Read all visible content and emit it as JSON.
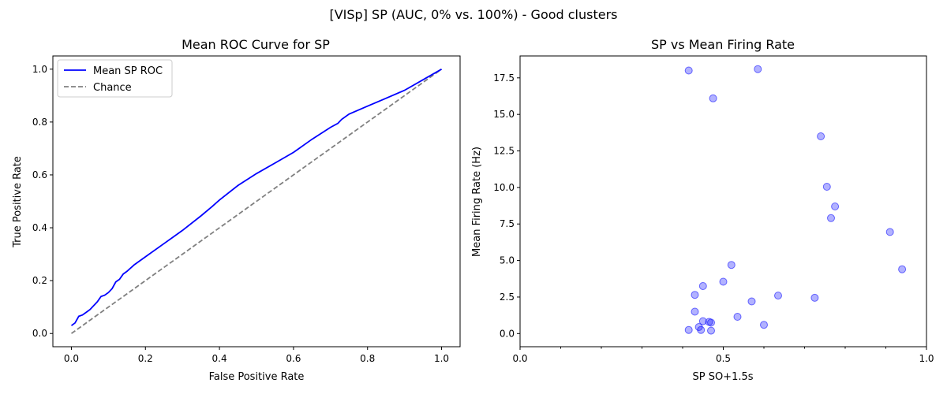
{
  "figure": {
    "suptitle": "[VISp] SP (AUC, 0% vs. 100%) - Good clusters"
  },
  "chart_data": [
    {
      "type": "line",
      "title": "Mean ROC Curve for SP",
      "xlabel": "False Positive Rate",
      "ylabel": "True Positive Rate",
      "xlim": [
        -0.05,
        1.05
      ],
      "ylim": [
        -0.05,
        1.05
      ],
      "xticks": [
        0.0,
        0.2,
        0.4,
        0.6,
        0.8,
        1.0
      ],
      "xtick_labels": [
        "0.0",
        "0.2",
        "0.4",
        "0.6",
        "0.8",
        "1.0"
      ],
      "yticks": [
        0.0,
        0.2,
        0.4,
        0.6,
        0.8,
        1.0
      ],
      "ytick_labels": [
        "0.0",
        "0.2",
        "0.4",
        "0.6",
        "0.8",
        "1.0"
      ],
      "grid": false,
      "legend": "top-left",
      "series": [
        {
          "name": "Mean SP ROC",
          "color": "#0000ff",
          "style": "solid",
          "x": [
            0.0,
            0.01,
            0.02,
            0.03,
            0.04,
            0.05,
            0.06,
            0.07,
            0.08,
            0.09,
            0.1,
            0.11,
            0.12,
            0.13,
            0.14,
            0.15,
            0.17,
            0.2,
            0.25,
            0.28,
            0.3,
            0.35,
            0.38,
            0.4,
            0.45,
            0.5,
            0.55,
            0.6,
            0.65,
            0.7,
            0.72,
            0.73,
            0.75,
            0.8,
            0.85,
            0.9,
            0.95,
            1.0
          ],
          "y": [
            0.03,
            0.04,
            0.065,
            0.07,
            0.08,
            0.09,
            0.105,
            0.12,
            0.14,
            0.145,
            0.155,
            0.17,
            0.195,
            0.205,
            0.225,
            0.235,
            0.26,
            0.29,
            0.34,
            0.37,
            0.39,
            0.445,
            0.48,
            0.505,
            0.56,
            0.605,
            0.645,
            0.685,
            0.735,
            0.78,
            0.795,
            0.81,
            0.83,
            0.86,
            0.89,
            0.92,
            0.96,
            1.0
          ]
        },
        {
          "name": "Chance",
          "color": "#808080",
          "style": "dashed",
          "x": [
            0.0,
            1.0
          ],
          "y": [
            0.0,
            1.0
          ]
        }
      ]
    },
    {
      "type": "scatter",
      "title": "SP vs Mean Firing Rate",
      "xlabel": "SP SO+1.5s",
      "ylabel": "Mean Firing Rate (Hz)",
      "xlim": [
        0.0,
        1.0
      ],
      "ylim": [
        -0.9,
        19.0
      ],
      "xticks": [
        0.0,
        0.5,
        1.0
      ],
      "xtick_labels": [
        "0.0",
        "0.5",
        "1.0"
      ],
      "xminor_ticks": [
        0.1,
        0.2,
        0.3,
        0.4,
        0.6,
        0.7,
        0.8,
        0.9
      ],
      "yticks": [
        0.0,
        2.5,
        5.0,
        7.5,
        10.0,
        12.5,
        15.0,
        17.5
      ],
      "ytick_labels": [
        "0.0",
        "2.5",
        "5.0",
        "7.5",
        "10.0",
        "12.5",
        "15.0",
        "17.5"
      ],
      "grid": false,
      "point_color": "#0000ff",
      "point_alpha": 0.3,
      "x": [
        0.415,
        0.585,
        0.475,
        0.74,
        0.755,
        0.775,
        0.765,
        0.91,
        0.94,
        0.52,
        0.5,
        0.45,
        0.43,
        0.57,
        0.635,
        0.725,
        0.43,
        0.535,
        0.45,
        0.465,
        0.47,
        0.6,
        0.44,
        0.415,
        0.445,
        0.47
      ],
      "y": [
        18.0,
        18.1,
        16.1,
        13.5,
        10.05,
        8.7,
        7.9,
        6.95,
        4.4,
        4.7,
        3.55,
        3.25,
        2.65,
        2.2,
        2.6,
        2.45,
        1.5,
        1.15,
        0.85,
        0.8,
        0.75,
        0.6,
        0.45,
        0.25,
        0.25,
        0.2
      ]
    }
  ]
}
